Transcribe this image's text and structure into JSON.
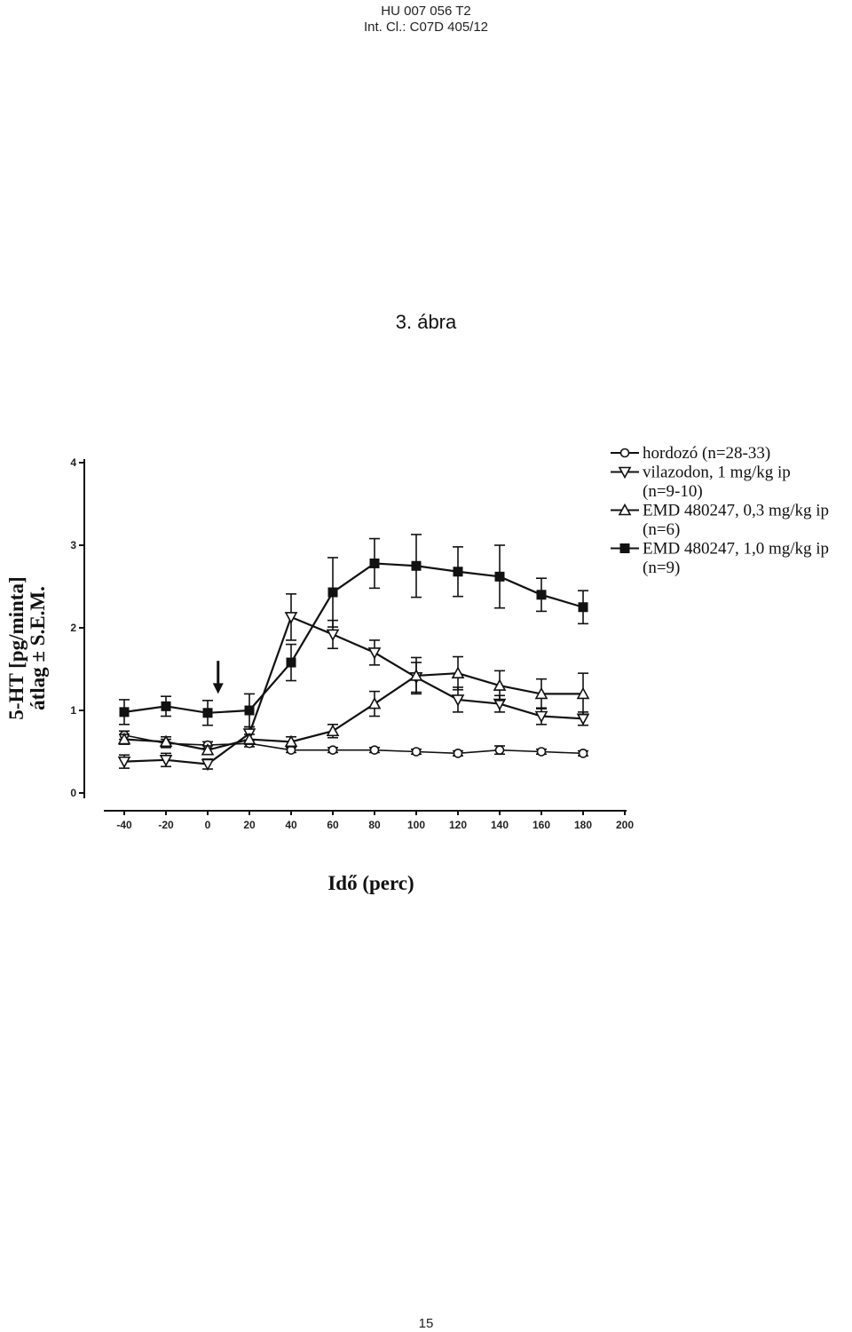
{
  "header": {
    "line1": "HU 007 056 T2",
    "line2": "Int. Cl.: C07D 405/12"
  },
  "figure_title": "3. ábra",
  "page_number": "15",
  "chart_data": {
    "type": "line",
    "title": "",
    "xlabel": "Idő (perc)",
    "ylabel_line1": "5-HT [pg/minta]",
    "ylabel_line2": "átlag ± S.E.M.",
    "xlim": [
      -40,
      200
    ],
    "ylim": [
      0,
      4
    ],
    "x_tick_values": [
      -40,
      -20,
      0,
      20,
      40,
      60,
      80,
      100,
      120,
      140,
      160,
      180,
      200
    ],
    "x_tick_labels": [
      "-40",
      "-20",
      "0",
      "20",
      "40",
      "60",
      "80",
      "100",
      "120",
      "140",
      "160",
      "180",
      "200"
    ],
    "y_tick_values": [
      0,
      1,
      2,
      3,
      4
    ],
    "y_tick_labels": [
      "0",
      "1",
      "2",
      "3",
      "4"
    ],
    "grid": false,
    "legend_position": "top-right",
    "annotation": {
      "type": "arrow",
      "x": 5,
      "meaning": "administration time"
    },
    "x": [
      -40,
      -20,
      0,
      20,
      40,
      60,
      80,
      100,
      120,
      140,
      160,
      180
    ],
    "series": [
      {
        "name": "hordozó (n=28-33)",
        "marker": "circle-open",
        "values": [
          0.7,
          0.6,
          0.58,
          0.6,
          0.52,
          0.52,
          0.52,
          0.5,
          0.48,
          0.52,
          0.5,
          0.48
        ],
        "errors": [
          0.05,
          0.05,
          0.04,
          0.04,
          0.03,
          0.03,
          0.03,
          0.03,
          0.03,
          0.05,
          0.03,
          0.03
        ]
      },
      {
        "name": "vilazodon, 1 mg/kg ip",
        "name_line2": "(n=9-10)",
        "marker": "triangle-down-open",
        "values": [
          0.38,
          0.4,
          0.35,
          0.72,
          2.13,
          1.92,
          1.7,
          1.4,
          1.13,
          1.08,
          0.93,
          0.9
        ],
        "errors": [
          0.08,
          0.08,
          0.06,
          0.08,
          0.28,
          0.17,
          0.15,
          0.18,
          0.15,
          0.1,
          0.1,
          0.08
        ]
      },
      {
        "name": "EMD 480247, 0,3 mg/kg ip",
        "name_line2": "(n=6)",
        "marker": "triangle-up-open",
        "values": [
          0.65,
          0.62,
          0.52,
          0.65,
          0.62,
          0.75,
          1.08,
          1.42,
          1.45,
          1.3,
          1.2,
          1.2
        ],
        "errors": [
          0.06,
          0.06,
          0.05,
          0.06,
          0.06,
          0.08,
          0.15,
          0.22,
          0.2,
          0.18,
          0.18,
          0.25
        ]
      },
      {
        "name": "EMD 480247, 1,0 mg/kg ip",
        "name_line2": "(n=9)",
        "marker": "square-filled",
        "values": [
          0.98,
          1.05,
          0.97,
          1.0,
          1.58,
          2.43,
          2.78,
          2.75,
          2.68,
          2.62,
          2.4,
          2.25
        ],
        "errors": [
          0.15,
          0.12,
          0.15,
          0.2,
          0.22,
          0.42,
          0.3,
          0.38,
          0.3,
          0.38,
          0.2,
          0.2
        ]
      }
    ]
  }
}
